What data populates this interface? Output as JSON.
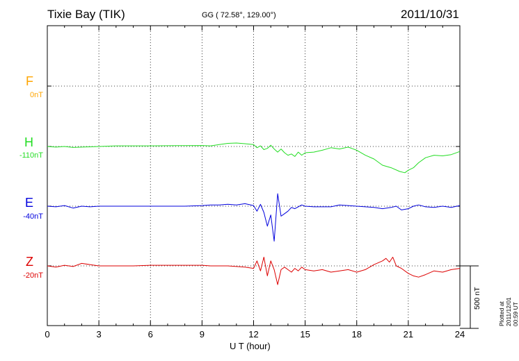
{
  "header": {
    "station": "Tixie Bay (TIK)",
    "coords": "GG ( 72.58°, 129.00°)",
    "date": "2011/10/31"
  },
  "footer": {
    "plotted": "Plotted at 2011/12/01 00:59 UT",
    "scale": "500 nT"
  },
  "chart_data": {
    "type": "line",
    "title": "Tixie Bay (TIK)",
    "xlabel": "U T (hour)",
    "ylabel": "",
    "xlim": [
      0,
      24
    ],
    "xticks": [
      "0",
      "3",
      "6",
      "9",
      "12",
      "15",
      "18",
      "21",
      "24"
    ],
    "grid": true,
    "scale_bar_nT": 500,
    "series": [
      {
        "name": "F",
        "offset": "0nT",
        "color": "#ffa500",
        "x": [],
        "values": []
      },
      {
        "name": "H",
        "offset": "-110nT",
        "color": "#22dd22",
        "x": [
          0,
          0.5,
          1,
          1.5,
          2,
          2.5,
          3,
          4,
          5,
          6,
          7,
          8,
          9,
          9.5,
          10,
          10.5,
          11,
          11.5,
          12,
          12.2,
          12.4,
          12.6,
          12.8,
          13,
          13.2,
          13.4,
          13.6,
          13.8,
          14,
          14.2,
          14.4,
          14.6,
          14.8,
          15,
          15.5,
          16,
          16.5,
          17,
          17.5,
          18,
          18.5,
          19,
          19.5,
          20,
          20.5,
          20.8,
          21,
          21.3,
          21.6,
          22,
          22.5,
          23,
          23.5,
          24
        ],
        "values": [
          0,
          -5,
          0,
          -8,
          -5,
          -3,
          0,
          5,
          5,
          5,
          6,
          7,
          8,
          5,
          15,
          25,
          28,
          22,
          15,
          -10,
          5,
          -25,
          -15,
          10,
          -20,
          -45,
          -20,
          -50,
          -70,
          -60,
          -80,
          -45,
          -70,
          -50,
          -45,
          -30,
          -10,
          -20,
          -5,
          -30,
          -70,
          -100,
          -150,
          -170,
          -200,
          -210,
          -190,
          -170,
          -130,
          -90,
          -70,
          -75,
          -65,
          -40
        ]
      },
      {
        "name": "E",
        "offset": "-40nT",
        "color": "#0000dd",
        "x": [
          0,
          0.5,
          1,
          1.5,
          2,
          2.5,
          3,
          4,
          5,
          6,
          7,
          8,
          9,
          9.5,
          10,
          10.5,
          11,
          11.5,
          12,
          12.2,
          12.4,
          12.6,
          12.8,
          13,
          13.2,
          13.4,
          13.6,
          13.8,
          14,
          14.2,
          14.4,
          14.6,
          14.8,
          15,
          15.5,
          16,
          16.5,
          17,
          17.5,
          18,
          18.5,
          19,
          19.5,
          20,
          20.3,
          20.6,
          21,
          21.3,
          21.6,
          22,
          22.5,
          23,
          23.5,
          24
        ],
        "values": [
          0,
          -5,
          5,
          -15,
          0,
          -5,
          0,
          0,
          0,
          0,
          0,
          0,
          5,
          10,
          10,
          15,
          10,
          20,
          5,
          -40,
          15,
          -50,
          -160,
          -70,
          -280,
          100,
          -80,
          -60,
          -40,
          -10,
          -20,
          -5,
          10,
          0,
          -5,
          -5,
          -5,
          10,
          5,
          0,
          -5,
          -10,
          -20,
          -10,
          0,
          -30,
          -20,
          0,
          10,
          -5,
          -10,
          0,
          -10,
          5
        ]
      },
      {
        "name": "Z",
        "offset": "-20nT",
        "color": "#dd0000",
        "x": [
          0,
          0.5,
          1,
          1.5,
          2,
          2.5,
          3,
          4,
          5,
          6,
          7,
          8,
          9,
          9.5,
          10,
          10.5,
          11,
          11.5,
          12,
          12.2,
          12.4,
          12.6,
          12.8,
          13,
          13.2,
          13.4,
          13.6,
          13.8,
          14,
          14.2,
          14.4,
          14.6,
          14.8,
          15,
          15.5,
          16,
          16.5,
          17,
          17.5,
          18,
          18.5,
          19,
          19.5,
          19.7,
          19.9,
          20.1,
          20.3,
          20.6,
          21,
          21.3,
          21.6,
          22,
          22.5,
          23,
          23.5,
          24
        ],
        "values": [
          0,
          -10,
          5,
          -5,
          20,
          10,
          0,
          0,
          0,
          5,
          5,
          5,
          5,
          0,
          0,
          0,
          -5,
          -10,
          -20,
          40,
          -40,
          70,
          -80,
          40,
          -30,
          -150,
          -30,
          -10,
          -30,
          -50,
          -20,
          -40,
          -10,
          -30,
          -40,
          -30,
          -50,
          -40,
          -30,
          -50,
          -30,
          10,
          40,
          60,
          30,
          70,
          0,
          -20,
          -60,
          -80,
          -90,
          -70,
          -40,
          -50,
          -30,
          -20
        ]
      }
    ]
  }
}
